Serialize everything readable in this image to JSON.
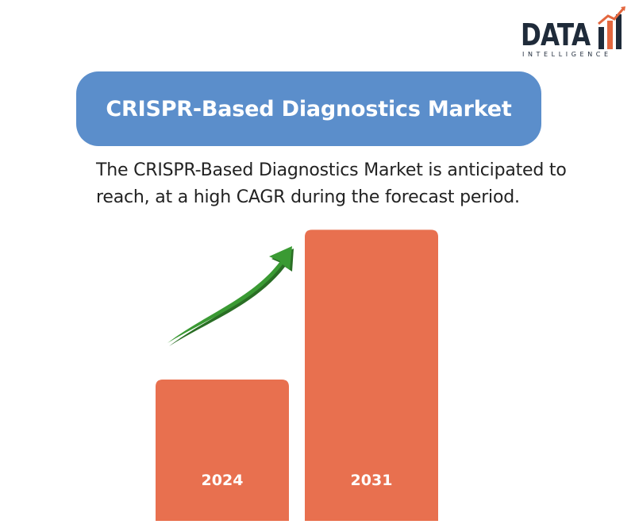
{
  "logo": {
    "word": "DATA",
    "sub": "INTELLIGENCE",
    "bar_color": "#e3673f",
    "text_color": "#1f2b3a"
  },
  "title": "CRISPR-Based Diagnostics Market",
  "subtitle": "The CRISPR-Based Diagnostics Market is anticipated to reach, at a high CAGR during the forecast period.",
  "chart_data": {
    "type": "bar",
    "categories": [
      "2024",
      "2031"
    ],
    "values": [
      1.0,
      2.06
    ],
    "bar_color": "#e8704f",
    "arrow_color": "#3a9a33",
    "grid": false
  }
}
